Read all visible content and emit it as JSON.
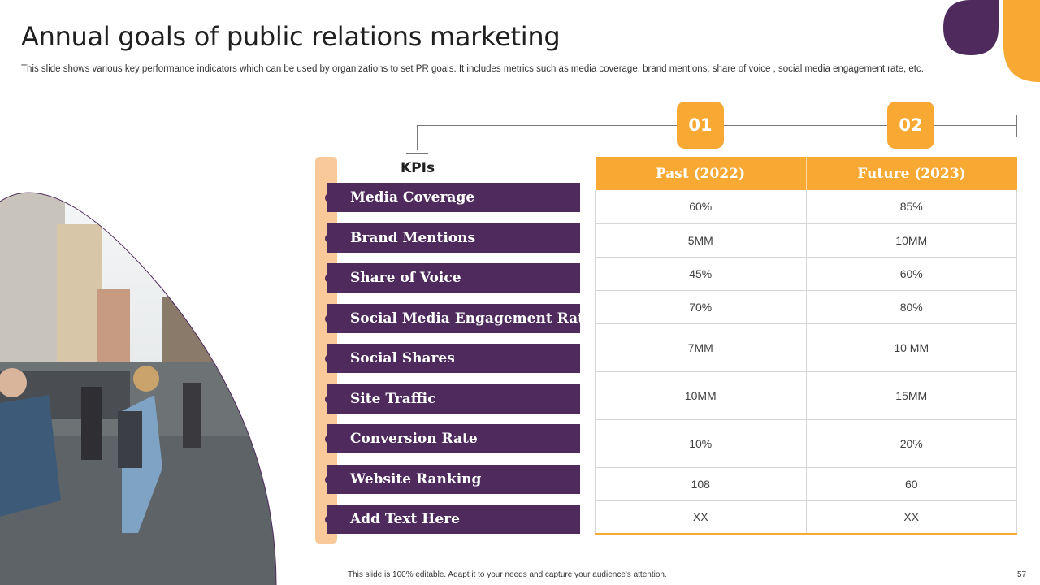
{
  "slide": {
    "title": "Annual goals of public relations marketing",
    "subtitle": "This slide shows various key performance indicators which can be used by organizations to set PR goals. It includes metrics such as media coverage, brand mentions, share of voice ,  social media engagement rate, etc.",
    "footer": "This slide is 100% editable. Adapt it to your needs and capture your audience's attention.",
    "page_number": "57"
  },
  "colors": {
    "purple": "#4e2b5c",
    "orange": "#f7a933",
    "peach": "#f9c99a",
    "grid": "#d6d6d6"
  },
  "badges": [
    "01",
    "02"
  ],
  "kpis": {
    "header": "KPIs",
    "items": [
      "Media Coverage",
      "Brand Mentions",
      "Share of Voice",
      "Social Media Engagement Rate",
      "Social Shares",
      "Site Traffic",
      "Conversion Rate",
      "Website Ranking",
      "Add Text Here"
    ]
  },
  "table": {
    "headers": [
      "Past (2022)",
      "Future (2023)"
    ],
    "rows": [
      [
        "60%",
        "85%"
      ],
      [
        "5MM",
        "10MM"
      ],
      [
        "45%",
        "60%"
      ],
      [
        "70%",
        "80%"
      ],
      [
        "7MM",
        "10 MM"
      ],
      [
        "10MM",
        "15MM"
      ],
      [
        "10%",
        "20%"
      ],
      [
        "108",
        "60"
      ],
      [
        "XX",
        "XX"
      ]
    ]
  }
}
